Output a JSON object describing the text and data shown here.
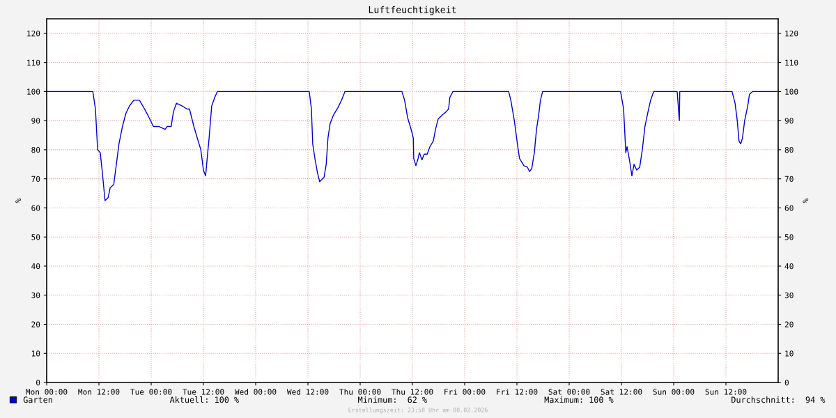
{
  "chart_data": {
    "type": "line",
    "title": "Luftfeuchtigkeit",
    "ylabel": "%",
    "y2label": "%",
    "xlim": [
      "2026-02-02T00:00",
      "2026-02-09T00:00"
    ],
    "ylim": [
      0,
      125
    ],
    "y2lim": [
      0,
      125
    ],
    "xticks": [
      {
        "value": "2026-02-02T00:00",
        "label": "Mon 00:00"
      },
      {
        "value": "2026-02-02T12:00",
        "label": "Mon 12:00"
      },
      {
        "value": "2026-02-03T00:00",
        "label": "Tue 00:00"
      },
      {
        "value": "2026-02-03T12:00",
        "label": "Tue 12:00"
      },
      {
        "value": "2026-02-04T00:00",
        "label": "Wed 00:00"
      },
      {
        "value": "2026-02-04T12:00",
        "label": "Wed 12:00"
      },
      {
        "value": "2026-02-05T00:00",
        "label": "Thu 00:00"
      },
      {
        "value": "2026-02-05T12:00",
        "label": "Thu 12:00"
      },
      {
        "value": "2026-02-06T00:00",
        "label": "Fri 00:00"
      },
      {
        "value": "2026-02-06T12:00",
        "label": "Fri 12:00"
      },
      {
        "value": "2026-02-07T00:00",
        "label": "Sat 00:00"
      },
      {
        "value": "2026-02-07T12:00",
        "label": "Sat 12:00"
      },
      {
        "value": "2026-02-08T00:00",
        "label": "Sun 00:00"
      },
      {
        "value": "2026-02-08T12:00",
        "label": "Sun 12:00"
      }
    ],
    "yticks": [
      0,
      10,
      20,
      30,
      40,
      50,
      60,
      70,
      80,
      90,
      100,
      110,
      120
    ],
    "y2ticks": [
      0,
      10,
      20,
      30,
      40,
      50,
      60,
      70,
      80,
      90,
      100,
      110,
      120
    ],
    "grid": true,
    "legend": "bottom left",
    "line_style": "solid",
    "marker": "none",
    "series": [
      {
        "name": "Garten",
        "color": "#0000cc",
        "x": [
          "2026-02-02T00:00",
          "2026-02-02T10:36",
          "2026-02-02T11:12",
          "2026-02-02T11:42",
          "2026-02-02T12:18",
          "2026-02-02T12:48",
          "2026-02-02T13:24",
          "2026-02-02T14:06",
          "2026-02-02T14:36",
          "2026-02-02T15:24",
          "2026-02-02T16:00",
          "2026-02-02T16:36",
          "2026-02-02T17:24",
          "2026-02-02T18:12",
          "2026-02-02T19:00",
          "2026-02-02T20:00",
          "2026-02-02T21:18",
          "2026-02-02T22:06",
          "2026-02-02T23:12",
          "2026-02-03T00:30",
          "2026-02-03T01:48",
          "2026-02-03T03:12",
          "2026-02-03T03:42",
          "2026-02-03T04:36",
          "2026-02-03T05:06",
          "2026-02-03T05:48",
          "2026-02-03T07:12",
          "2026-02-03T08:12",
          "2026-02-03T08:48",
          "2026-02-03T09:48",
          "2026-02-03T10:36",
          "2026-02-03T11:24",
          "2026-02-03T12:00",
          "2026-02-03T12:30",
          "2026-02-03T12:48",
          "2026-02-03T13:18",
          "2026-02-03T13:54",
          "2026-02-03T14:36",
          "2026-02-03T15:12",
          "2026-02-04T12:18",
          "2026-02-04T12:48",
          "2026-02-04T13:06",
          "2026-02-04T13:36",
          "2026-02-04T14:12",
          "2026-02-04T14:42",
          "2026-02-04T15:42",
          "2026-02-04T16:12",
          "2026-02-04T16:36",
          "2026-02-04T17:06",
          "2026-02-04T17:54",
          "2026-02-04T18:54",
          "2026-02-04T19:42",
          "2026-02-04T20:30",
          "2026-02-05T09:36",
          "2026-02-05T10:12",
          "2026-02-05T10:54",
          "2026-02-05T11:42",
          "2026-02-05T12:12",
          "2026-02-05T12:18",
          "2026-02-05T12:48",
          "2026-02-05T13:18",
          "2026-02-05T13:36",
          "2026-02-05T14:12",
          "2026-02-05T14:42",
          "2026-02-05T15:24",
          "2026-02-05T16:00",
          "2026-02-05T16:48",
          "2026-02-05T17:18",
          "2026-02-05T17:54",
          "2026-02-05T18:54",
          "2026-02-05T19:42",
          "2026-02-05T20:18",
          "2026-02-05T20:36",
          "2026-02-05T21:18",
          "2026-02-06T10:06",
          "2026-02-06T10:36",
          "2026-02-06T11:24",
          "2026-02-06T12:12",
          "2026-02-06T12:36",
          "2026-02-06T13:36",
          "2026-02-06T14:24",
          "2026-02-06T14:54",
          "2026-02-06T15:24",
          "2026-02-06T16:00",
          "2026-02-06T16:30",
          "2026-02-06T17:00",
          "2026-02-06T17:24",
          "2026-02-06T17:54",
          "2026-02-07T11:48",
          "2026-02-07T12:30",
          "2026-02-07T13:00",
          "2026-02-07T13:18",
          "2026-02-07T13:54",
          "2026-02-07T14:24",
          "2026-02-07T14:54",
          "2026-02-07T15:30",
          "2026-02-07T16:12",
          "2026-02-07T16:48",
          "2026-02-07T17:24",
          "2026-02-07T18:06",
          "2026-02-07T18:42",
          "2026-02-07T19:24",
          "2026-02-08T00:48",
          "2026-02-08T01:18",
          "2026-02-08T01:24",
          "2026-02-08T13:24",
          "2026-02-08T14:06",
          "2026-02-08T14:36",
          "2026-02-08T15:00",
          "2026-02-08T15:24",
          "2026-02-08T15:48",
          "2026-02-08T16:18",
          "2026-02-08T17:00",
          "2026-02-08T17:24",
          "2026-02-08T18:06",
          "2026-02-08T23:42"
        ],
        "values": [
          100,
          100,
          94,
          80,
          79,
          72,
          62.5,
          63.5,
          67,
          68,
          75,
          82,
          88,
          92.5,
          95,
          97,
          97,
          95,
          92,
          88,
          88,
          87,
          88,
          88,
          93,
          96,
          95,
          94,
          94,
          88,
          84,
          80,
          73,
          71,
          76,
          84,
          95,
          98,
          100,
          100,
          94,
          82,
          77,
          72,
          69,
          70.5,
          75,
          84,
          89,
          92,
          94.5,
          97,
          100,
          100,
          97,
          91,
          87,
          84,
          77,
          74.5,
          77,
          79,
          76.5,
          78.5,
          78.5,
          81,
          83,
          87,
          90.5,
          92,
          93,
          94,
          98,
          100,
          100,
          97,
          90,
          81,
          77,
          74.5,
          74,
          72.5,
          73.5,
          79,
          87,
          92,
          97,
          100,
          100,
          94,
          79,
          81,
          76,
          71,
          75,
          73,
          74,
          80,
          88,
          93,
          97,
          100,
          100,
          90,
          100,
          100,
          96,
          90,
          83,
          82,
          84,
          90,
          95,
          99,
          100,
          100
        ]
      }
    ],
    "annotations": [
      "Aktuell: 100 %",
      "Minimum:  62 %",
      "Maximum: 100 %",
      "Durchschnitt:  94 %",
      "Erstellungszeit: 23:58 Uhr am 08.02.2026"
    ]
  }
}
